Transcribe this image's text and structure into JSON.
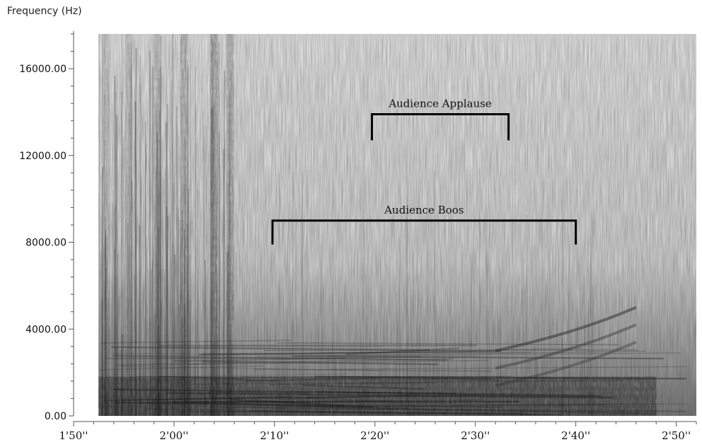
{
  "chart_data": {
    "type": "heatmap",
    "ylabel": "Frequency (Hz)",
    "xlabel": "",
    "ylim": [
      0,
      17600
    ],
    "xlim": [
      110,
      172
    ],
    "yticks": [
      {
        "value": 0,
        "label": "0.00"
      },
      {
        "value": 4000,
        "label": "4000.00"
      },
      {
        "value": 8000,
        "label": "8000.00"
      },
      {
        "value": 12000,
        "label": "12000.00"
      },
      {
        "value": 16000,
        "label": "16000.00"
      }
    ],
    "xticks": [
      {
        "value": 110,
        "label": "1'50''"
      },
      {
        "value": 120,
        "label": "2'00''"
      },
      {
        "value": 130,
        "label": "2'10''"
      },
      {
        "value": 140,
        "label": "2'20''"
      },
      {
        "value": 150,
        "label": "2'30''"
      },
      {
        "value": 160,
        "label": "2'40''"
      },
      {
        "value": 170,
        "label": "2'50''"
      }
    ],
    "annotations": [
      {
        "label": "Audience Applause",
        "x_start": 139.7,
        "x_end": 153.3,
        "y": 13900,
        "y_drop": 12700
      },
      {
        "label": "Audience Boos",
        "x_start": 129.8,
        "x_end": 160.0,
        "y": 9000,
        "y_drop": 7900
      }
    ],
    "signal_start": 112.5,
    "signal_end": 172.0,
    "colors": {
      "ink": "#000000",
      "axis": "#555555",
      "spectrogram": "#2a2a2a"
    }
  }
}
